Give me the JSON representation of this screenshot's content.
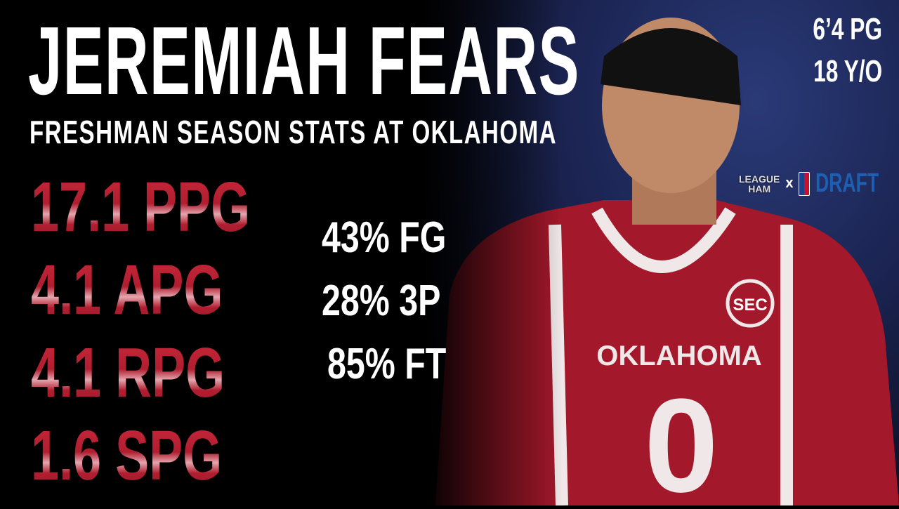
{
  "player": {
    "name": "JEREMIAH FEARS",
    "subtitle": "FRESHMAN SEASON STATS AT OKLAHOMA",
    "height_position": "6’4 PG",
    "age": "18 Y/O"
  },
  "main_stats": [
    "17.1 PPG",
    "4.1 APG",
    "4.1 RPG",
    "1.6 SPG"
  ],
  "shooting_stats": [
    "43% FG",
    "28% 3P",
    "85% FT"
  ],
  "jersey": {
    "school": "OKLAHOMA",
    "number": "0",
    "conference": "SEC"
  },
  "branding": {
    "league_ham_line1": "LEAGUE",
    "league_ham_line2": "HAM",
    "separator": "x",
    "draft": "DRAFT"
  },
  "colors": {
    "stat_red": "#c8283a",
    "jersey_red": "#a3182a",
    "background": "#000000"
  }
}
